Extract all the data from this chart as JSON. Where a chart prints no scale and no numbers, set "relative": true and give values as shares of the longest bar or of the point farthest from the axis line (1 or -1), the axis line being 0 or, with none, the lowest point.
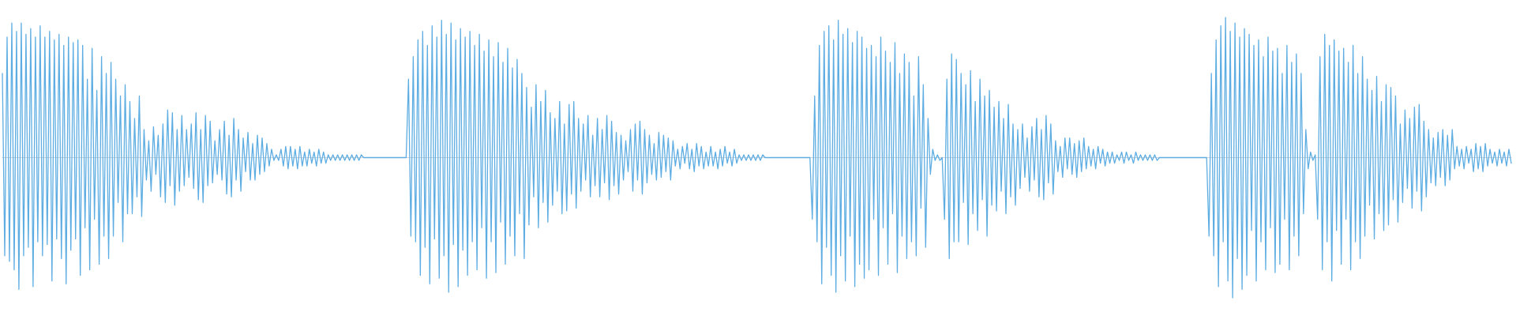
{
  "chart_data": {
    "type": "line",
    "relative": true,
    "color": "#5dade2",
    "categories": [
      null,
      null,
      null,
      null,
      null,
      null,
      null,
      null,
      null,
      null,
      null,
      null,
      null,
      null,
      null,
      null,
      null,
      null,
      null,
      null,
      null,
      null,
      null,
      null,
      null,
      null,
      null,
      null,
      null,
      null,
      null,
      null,
      null,
      null,
      null,
      null,
      null,
      null,
      null,
      null,
      null,
      null,
      null,
      null,
      null,
      null,
      null,
      null,
      null,
      null,
      null,
      null,
      null,
      null,
      null,
      null,
      null,
      null,
      null,
      null,
      null,
      null,
      null,
      null,
      null,
      null,
      null,
      null,
      null,
      null,
      null,
      null,
      null,
      null,
      null,
      null,
      null,
      null,
      null,
      null,
      null,
      null,
      null,
      null,
      null,
      null,
      null,
      null,
      null,
      null,
      null,
      null,
      null,
      null,
      null,
      null,
      null,
      null,
      null,
      null,
      null,
      null,
      null,
      null,
      null,
      null,
      null,
      null,
      null,
      null,
      null,
      null,
      null,
      null,
      null,
      null,
      null,
      null,
      null,
      null,
      null,
      null,
      null,
      null,
      null,
      null,
      null,
      null,
      null,
      null,
      null,
      null,
      null,
      null,
      null,
      null,
      null,
      null,
      null,
      null,
      null,
      null,
      null,
      null,
      null,
      null,
      null,
      null,
      null,
      null,
      null,
      null,
      null,
      null,
      null,
      null,
      null,
      null,
      null,
      null,
      null,
      null,
      null,
      null,
      null,
      null,
      null,
      null,
      null,
      null,
      null,
      null,
      null,
      null,
      null,
      null,
      null,
      null,
      null,
      null,
      null,
      null,
      null,
      null,
      null,
      null,
      null,
      null,
      null,
      null,
      null,
      null,
      null,
      null,
      null,
      null,
      null,
      null,
      null,
      null,
      null,
      null,
      null,
      null,
      null,
      null,
      null,
      null,
      null,
      null,
      null,
      null,
      null,
      null,
      null,
      null,
      null,
      null,
      null,
      null,
      null,
      null,
      null,
      null,
      null,
      null,
      null,
      null,
      null,
      null,
      null,
      null,
      null,
      null,
      null,
      null,
      null,
      null,
      null,
      null,
      null,
      null,
      null,
      null,
      null,
      null,
      null,
      null,
      null,
      null,
      null,
      null,
      null,
      null,
      null,
      null,
      null,
      null,
      null,
      null,
      null,
      null,
      null,
      null,
      null,
      null,
      null,
      null,
      null,
      null,
      null,
      null,
      null,
      null,
      null,
      null,
      null,
      null,
      null,
      null,
      null,
      null,
      null,
      null,
      null,
      null,
      null,
      null,
      null,
      null,
      null,
      null,
      null,
      null,
      null,
      null,
      null,
      null,
      null,
      null,
      null,
      null,
      null,
      null,
      null,
      null,
      null,
      null,
      null,
      null,
      null,
      null,
      null,
      null,
      null,
      null,
      null,
      null,
      null,
      null,
      null,
      null,
      null,
      null,
      null,
      null,
      null,
      null,
      null,
      null,
      null,
      null,
      null,
      null,
      null,
      null,
      null,
      null,
      null,
      null,
      null,
      null,
      null,
      null,
      null,
      null,
      null,
      null,
      null,
      null,
      null,
      null,
      null,
      null,
      null,
      null,
      null,
      null,
      null,
      null,
      null,
      null,
      null,
      null,
      null,
      null,
      null,
      null,
      null,
      null,
      null,
      null,
      null,
      null,
      null,
      null,
      null,
      null,
      null,
      null,
      null,
      null,
      null,
      null,
      null,
      null,
      null,
      null,
      null,
      null,
      null,
      null,
      null,
      null,
      null,
      null,
      null,
      null,
      null,
      null,
      null,
      null,
      null,
      null,
      null,
      null,
      null,
      null,
      null,
      null,
      null,
      null,
      null,
      null,
      null,
      null,
      null,
      null,
      null,
      null,
      null,
      null,
      null,
      null,
      null,
      null,
      null,
      null,
      null,
      null,
      null,
      null,
      null,
      null,
      null,
      null,
      null,
      null,
      null,
      null,
      null,
      null,
      null,
      null,
      null,
      null,
      null,
      null,
      null,
      null,
      null,
      null,
      null,
      null,
      null,
      null,
      null,
      null,
      null,
      null,
      null,
      null,
      null,
      null,
      null,
      null,
      null,
      null,
      null,
      null,
      null,
      null,
      null,
      null,
      null,
      null,
      null,
      null,
      null,
      null,
      null,
      null,
      null,
      null,
      null,
      null,
      null,
      null,
      null,
      null,
      null,
      null,
      null,
      null,
      null,
      null,
      null,
      null,
      null,
      null,
      null,
      null,
      null,
      null,
      null,
      null,
      null,
      null,
      null,
      null,
      null,
      null,
      null,
      null,
      null,
      null,
      null,
      null,
      null,
      null,
      null,
      null,
      null,
      null,
      null,
      null,
      null,
      null,
      null,
      null,
      null,
      null,
      null,
      null,
      null,
      null,
      null,
      null,
      null,
      null,
      null,
      null,
      null,
      null,
      null,
      null,
      null,
      null,
      null,
      null,
      null,
      null,
      null,
      null,
      null,
      null,
      null,
      null,
      null,
      null,
      null,
      null,
      null,
      null,
      null,
      null,
      null,
      null,
      null,
      null,
      null,
      null,
      null,
      null,
      null,
      null,
      null,
      null,
      null,
      null,
      null,
      null,
      null,
      null,
      null,
      null,
      null,
      null,
      null,
      null,
      null,
      null,
      null,
      null,
      null,
      null,
      null,
      null,
      null,
      null,
      null,
      null,
      null,
      null,
      null,
      null,
      null,
      null,
      null,
      null,
      null,
      null,
      null,
      null,
      null,
      null,
      null,
      null,
      null,
      null,
      null,
      null,
      null,
      null,
      null,
      null,
      null,
      null,
      null,
      null,
      null,
      null,
      null,
      null,
      null,
      null,
      null,
      null,
      null,
      null
    ],
    "values": [
      0.6,
      -0.7,
      0.86,
      -0.74,
      0.96,
      -0.8,
      0.9,
      -0.94,
      0.96,
      -0.7,
      0.88,
      -0.64,
      0.92,
      -0.92,
      0.86,
      -0.6,
      0.94,
      -0.7,
      0.86,
      -0.62,
      0.9,
      -0.88,
      0.84,
      -0.58,
      0.88,
      -0.72,
      0.8,
      -0.9,
      0.86,
      -0.66,
      0.82,
      -0.58,
      0.84,
      -0.84,
      0.8,
      -0.5,
      0.56,
      -0.8,
      0.78,
      -0.44,
      0.48,
      -0.76,
      0.72,
      -0.56,
      0.6,
      -0.72,
      0.68,
      -0.56,
      0.56,
      -0.32,
      0.44,
      -0.6,
      0.52,
      -0.4,
      0.4,
      -0.4,
      0.28,
      -0.28,
      0.44,
      -0.42,
      0.2,
      -0.16,
      0.12,
      -0.24,
      0.22,
      -0.12,
      0.16,
      -0.28,
      0.24,
      -0.32,
      0.34,
      -0.2,
      0.32,
      -0.34,
      0.2,
      -0.24,
      0.3,
      -0.2,
      0.2,
      -0.14,
      0.24,
      -0.22,
      0.32,
      -0.3,
      0.2,
      -0.32,
      0.3,
      -0.2,
      0.26,
      -0.18,
      0.12,
      -0.12,
      0.2,
      -0.16,
      0.26,
      -0.26,
      0.16,
      -0.28,
      0.28,
      -0.16,
      0.2,
      -0.24,
      0.14,
      -0.1,
      0.18,
      -0.16,
      0.1,
      -0.16,
      0.16,
      -0.12,
      0.14,
      -0.1,
      0.1,
      -0.06,
      0.06,
      -0.02,
      0.02,
      -0.02,
      0.06,
      -0.06,
      0.08,
      -0.08,
      0.08,
      -0.06,
      0.06,
      -0.08,
      0.08,
      -0.06,
      0.04,
      -0.06,
      0.06,
      -0.04,
      0.04,
      -0.06,
      0.06,
      -0.04,
      0.04,
      -0.04,
      0.02,
      -0.02,
      0.02,
      -0.02,
      0.02,
      -0.02,
      0.02,
      -0.02,
      0.02,
      -0.02,
      0.02,
      -0.02,
      0.02,
      -0.02,
      0.02,
      0,
      0,
      0,
      0,
      0,
      0,
      0,
      0,
      0,
      0,
      0,
      0,
      0,
      0,
      0,
      0,
      0,
      0,
      0,
      0.56,
      -0.56,
      0.72,
      -0.6,
      0.84,
      -0.84,
      0.9,
      -0.64,
      0.8,
      -0.9,
      0.94,
      -0.58,
      0.86,
      -0.86,
      0.98,
      -0.7,
      0.88,
      -0.96,
      0.96,
      -0.62,
      0.84,
      -0.92,
      0.92,
      -0.66,
      0.86,
      -0.84,
      0.9,
      -0.6,
      0.8,
      -0.8,
      0.88,
      -0.5,
      0.76,
      -0.86,
      0.84,
      -0.6,
      0.72,
      -0.82,
      0.82,
      -0.46,
      0.68,
      -0.76,
      0.78,
      -0.56,
      0.64,
      -0.7,
      0.7,
      -0.4,
      0.6,
      -0.72,
      0.5,
      -0.48,
      0.36,
      -0.28,
      0.52,
      -0.5,
      0.4,
      -0.32,
      0.48,
      -0.46,
      0.32,
      -0.34,
      0.28,
      -0.24,
      0.4,
      -0.4,
      0.24,
      -0.38,
      0.38,
      -0.26,
      0.4,
      -0.36,
      0.28,
      -0.24,
      0.24,
      -0.16,
      0.3,
      -0.28,
      0.16,
      -0.2,
      0.28,
      -0.28,
      0.2,
      -0.18,
      0.3,
      -0.3,
      0.26,
      -0.2,
      0.18,
      -0.26,
      0.16,
      -0.16,
      0.12,
      -0.1,
      0.2,
      -0.24,
      0.24,
      -0.16,
      0.26,
      -0.26,
      0.2,
      -0.18,
      0.16,
      -0.12,
      0.1,
      -0.16,
      0.18,
      -0.14,
      0.16,
      -0.1,
      0.14,
      -0.16,
      0.12,
      -0.06,
      0.06,
      -0.08,
      0.08,
      -0.04,
      0.1,
      -0.08,
      0.06,
      -0.1,
      0.1,
      -0.06,
      0.08,
      -0.08,
      0.04,
      -0.06,
      0.08,
      -0.06,
      0.04,
      -0.08,
      0.06,
      -0.06,
      0.08,
      -0.04,
      0.04,
      -0.06,
      0.06,
      -0.04,
      0.02,
      -0.02,
      0.02,
      -0.02,
      0.02,
      -0.02,
      0.02,
      -0.02,
      0.02,
      -0.02,
      0.02,
      0,
      0,
      0,
      0,
      0,
      0,
      0,
      0,
      0,
      0,
      0,
      0,
      0,
      0,
      0,
      0,
      0,
      0,
      0,
      0,
      -0.44,
      0.44,
      -0.6,
      0.8,
      -0.9,
      0.9,
      -0.64,
      0.94,
      -0.84,
      0.84,
      -0.96,
      0.98,
      -0.7,
      0.88,
      -0.88,
      0.92,
      -0.56,
      0.82,
      -0.92,
      0.9,
      -0.76,
      0.86,
      -0.86,
      0.78,
      -0.8,
      0.8,
      -0.44,
      0.72,
      -0.84,
      0.86,
      -0.5,
      0.76,
      -0.76,
      0.68,
      -0.4,
      0.82,
      -0.82,
      0.6,
      -0.56,
      0.74,
      -0.72,
      0.68,
      -0.6,
      0.44,
      -0.7,
      0.72,
      -0.36,
      0.52,
      -0.64,
      0.28,
      -0.12,
      0.06,
      -0.02,
      0.02,
      -0.02,
      0,
      -0.44,
      0.56,
      -0.72,
      0.74,
      -0.6,
      0.7,
      -0.6,
      0.6,
      -0.32,
      0.52,
      -0.62,
      0.62,
      -0.4,
      0.4,
      -0.52,
      0.56,
      -0.3,
      0.44,
      -0.56,
      0.48,
      -0.34,
      0.36,
      -0.38,
      0.4,
      -0.24,
      0.28,
      -0.4,
      0.38,
      -0.28,
      0.24,
      -0.34,
      0.2,
      -0.22,
      0.24,
      -0.14,
      0.14,
      -0.24,
      0.22,
      -0.16,
      0.28,
      -0.28,
      0.2,
      -0.3,
      0.3,
      -0.18,
      0.24,
      -0.26,
      0.12,
      -0.1,
      0.08,
      -0.14,
      0.14,
      -0.08,
      0.14,
      -0.12,
      0.1,
      -0.14,
      0.12,
      -0.1,
      0.14,
      -0.08,
      0.08,
      -0.06,
      0.06,
      -0.08,
      0.08,
      -0.04,
      0.06,
      -0.06,
      0.04,
      -0.04,
      0.04,
      -0.04,
      0.02,
      -0.02,
      0.04,
      -0.04,
      0.04,
      -0.02,
      0.02,
      -0.04,
      0.04,
      -0.02,
      0.02,
      -0.02,
      0.02,
      -0.02,
      0.02,
      -0.02,
      0.02,
      -0.02,
      0,
      0,
      0,
      0,
      0,
      0,
      0,
      0,
      0,
      0,
      0,
      0,
      0,
      0,
      0,
      0,
      0,
      0,
      0,
      0,
      0,
      -0.56,
      0.6,
      -0.7,
      0.84,
      -0.92,
      0.94,
      -0.6,
      1,
      -0.88,
      0.9,
      -1,
      0.96,
      -0.72,
      0.86,
      -0.94,
      0.92,
      -0.84,
      0.88,
      -0.52,
      0.8,
      -0.88,
      0.84,
      -0.6,
      0.72,
      -0.8,
      0.86,
      -0.5,
      0.76,
      -0.82,
      0.78,
      -0.76,
      0.6,
      -0.44,
      0.8,
      -0.8,
      0.68,
      -0.56,
      0.74,
      -0.7,
      0.6,
      -0.4,
      0.2,
      -0.08,
      0.04,
      -0.02,
      0.02,
      -0.44,
      0.72,
      -0.8,
      0.88,
      -0.6,
      0.8,
      -0.88,
      0.84,
      -0.52,
      0.76,
      -0.76,
      0.78,
      -0.44,
      0.68,
      -0.8,
      0.8,
      -0.6,
      0.6,
      -0.72,
      0.72,
      -0.56,
      0.56,
      -0.34,
      0.48,
      -0.58,
      0.58,
      -0.4,
      0.4,
      -0.52,
      0.52,
      -0.48,
      0.5,
      -0.3,
      0.44,
      -0.46,
      0.24,
      -0.32,
      0.34,
      -0.22,
      0.28,
      -0.36,
      0.36,
      -0.24,
      0.38,
      -0.38,
      0.26,
      -0.28,
      0.2,
      -0.18,
      0.14,
      -0.2,
      0.18,
      -0.14,
      0.2,
      -0.2,
      0.16,
      -0.16,
      0.2,
      -0.08,
      0.08,
      -0.06,
      0.06,
      -0.08,
      0.08,
      -0.04,
      0.06,
      -0.1,
      0.1,
      -0.08,
      0.08,
      -0.1,
      0.1,
      -0.06,
      0.06,
      -0.04,
      0.04,
      -0.06,
      0.06,
      -0.04,
      0.04,
      -0.06,
      0.06,
      -0.04
    ]
  }
}
